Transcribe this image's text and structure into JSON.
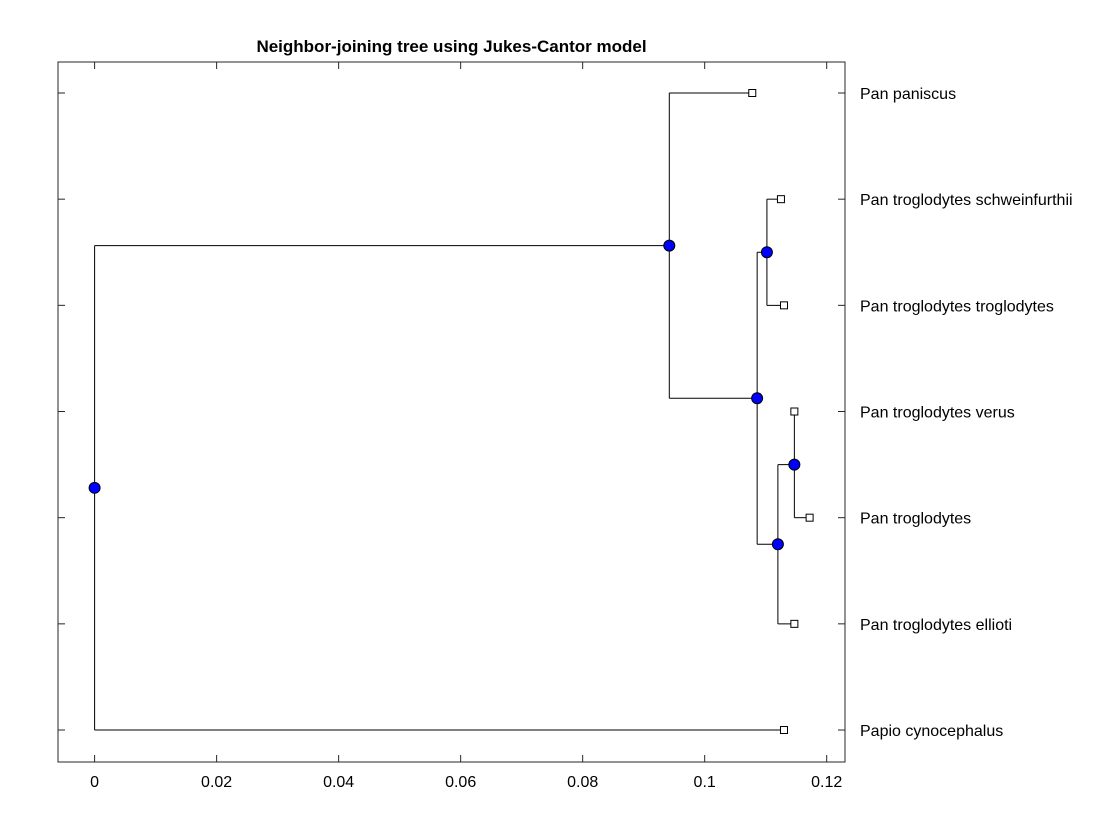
{
  "chart_data": {
    "type": "dendrogram",
    "title": "Neighbor-joining tree using Jukes-Cantor model",
    "xlabel": "",
    "ylabel": "",
    "xlim": [
      -0.006,
      0.123
    ],
    "xticks": [
      0,
      0.02,
      0.04,
      0.06,
      0.08,
      0.1,
      0.12
    ],
    "xtick_labels": [
      "0",
      "0.02",
      "0.04",
      "0.06",
      "0.08",
      "0.1",
      "0.12"
    ],
    "grid": false,
    "leaves": [
      {
        "id": "L1",
        "label": "Pan paniscus",
        "x": 0.1078
      },
      {
        "id": "L2",
        "label": "Pan troglodytes schweinfurthii",
        "x": 0.1125
      },
      {
        "id": "L3",
        "label": "Pan troglodytes troglodytes",
        "x": 0.113
      },
      {
        "id": "L4",
        "label": "Pan troglodytes verus",
        "x": 0.1147
      },
      {
        "id": "L5",
        "label": "Pan troglodytes",
        "x": 0.1172
      },
      {
        "id": "L6",
        "label": "Pan troglodytes ellioti",
        "x": 0.1147
      },
      {
        "id": "L7",
        "label": "Papio cynocephalus",
        "x": 0.113
      }
    ],
    "internal_nodes": [
      {
        "id": "N_root",
        "x": 0.0,
        "children": [
          "N_pan",
          "L7"
        ]
      },
      {
        "id": "N_pan",
        "x": 0.0942,
        "children": [
          "L1",
          "N_trog"
        ]
      },
      {
        "id": "N_trog",
        "x": 0.1086,
        "children": [
          "N_st",
          "N_vpe"
        ]
      },
      {
        "id": "N_st",
        "x": 0.1102,
        "children": [
          "L2",
          "L3"
        ]
      },
      {
        "id": "N_vpe",
        "x": 0.112,
        "children": [
          "N_vp",
          "L6"
        ]
      },
      {
        "id": "N_vp",
        "x": 0.1147,
        "children": [
          "L4",
          "L5"
        ]
      }
    ],
    "colors": {
      "internal_node": "#0000ff",
      "leaf_node": "#ffffff",
      "line": "#000000"
    }
  }
}
